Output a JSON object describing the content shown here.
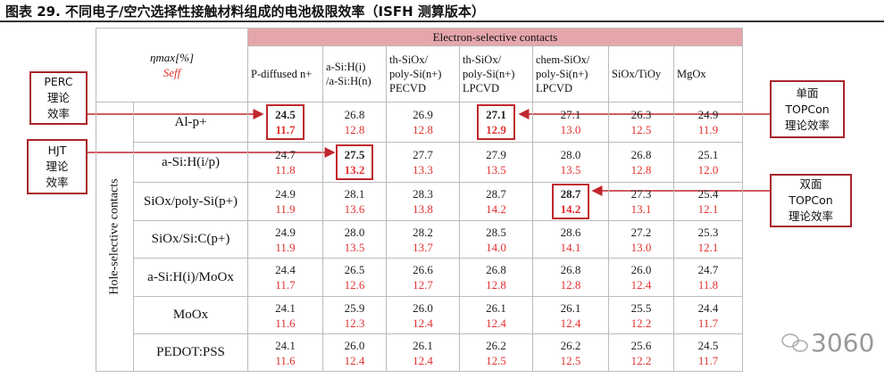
{
  "title": "图表 29. 不同电子/空穴选择性接触材料组成的电池极限效率（ISFH 测算版本）",
  "table": {
    "corner": {
      "eta": "ηmax[%]",
      "seff": "Seff"
    },
    "group_label": "Electron-selective contacts",
    "row_group_label": "Hole-selective contacts",
    "columns": [
      [
        "P-diffused n+"
      ],
      [
        "a-Si:H(i)",
        "/a-Si:H(n)"
      ],
      [
        "th-SiOx/",
        "poly-Si(n+)",
        "PECVD"
      ],
      [
        "th-SiOx/",
        "poly-Si(n+)",
        "LPCVD"
      ],
      [
        "chem-SiOx/",
        "poly-Si(n+)",
        "LPCVD"
      ],
      [
        "SiOx/TiOy"
      ],
      [
        "MgOx"
      ]
    ],
    "rows": [
      {
        "name": "Al-p+",
        "cells": [
          {
            "eta": "24.5",
            "seff": "11.7",
            "highlight": true
          },
          {
            "eta": "26.8",
            "seff": "12.8"
          },
          {
            "eta": "26.9",
            "seff": "12.8"
          },
          {
            "eta": "27.1",
            "seff": "12.9",
            "highlight": true
          },
          {
            "eta": "27.1",
            "seff": "13.0"
          },
          {
            "eta": "26.3",
            "seff": "12.5"
          },
          {
            "eta": "24.9",
            "seff": "11.9"
          }
        ]
      },
      {
        "name": "a-Si:H(i/p)",
        "cells": [
          {
            "eta": "24.7",
            "seff": "11.8"
          },
          {
            "eta": "27.5",
            "seff": "13.2",
            "highlight": true
          },
          {
            "eta": "27.7",
            "seff": "13.3"
          },
          {
            "eta": "27.9",
            "seff": "13.5"
          },
          {
            "eta": "28.0",
            "seff": "13.5"
          },
          {
            "eta": "26.8",
            "seff": "12.8"
          },
          {
            "eta": "25.1",
            "seff": "12.0"
          }
        ]
      },
      {
        "name": "SiOx/poly-Si(p+)",
        "cells": [
          {
            "eta": "24.9",
            "seff": "11.9"
          },
          {
            "eta": "28.1",
            "seff": "13.6"
          },
          {
            "eta": "28.3",
            "seff": "13.8"
          },
          {
            "eta": "28.7",
            "seff": "14.2"
          },
          {
            "eta": "28.7",
            "seff": "14.2",
            "highlight": true
          },
          {
            "eta": "27.3",
            "seff": "13.1"
          },
          {
            "eta": "25.4",
            "seff": "12.1"
          }
        ]
      },
      {
        "name": "SiOx/Si:C(p+)",
        "cells": [
          {
            "eta": "24.9",
            "seff": "11.9"
          },
          {
            "eta": "28.0",
            "seff": "13.5"
          },
          {
            "eta": "28.2",
            "seff": "13.7"
          },
          {
            "eta": "28.5",
            "seff": "14.0"
          },
          {
            "eta": "28.6",
            "seff": "14.1"
          },
          {
            "eta": "27.2",
            "seff": "13.0"
          },
          {
            "eta": "25.3",
            "seff": "12.1"
          }
        ]
      },
      {
        "name": "a-Si:H(i)/MoOx",
        "cells": [
          {
            "eta": "24.4",
            "seff": "11.7"
          },
          {
            "eta": "26.5",
            "seff": "12.6"
          },
          {
            "eta": "26.6",
            "seff": "12.7"
          },
          {
            "eta": "26.8",
            "seff": "12.8"
          },
          {
            "eta": "26.8",
            "seff": "12.8"
          },
          {
            "eta": "26.0",
            "seff": "12.4"
          },
          {
            "eta": "24.7",
            "seff": "11.8"
          }
        ]
      },
      {
        "name": "MoOx",
        "cells": [
          {
            "eta": "24.1",
            "seff": "11.6"
          },
          {
            "eta": "25.9",
            "seff": "12.3"
          },
          {
            "eta": "26.0",
            "seff": "12.4"
          },
          {
            "eta": "26.1",
            "seff": "12.4"
          },
          {
            "eta": "26.1",
            "seff": "12.4"
          },
          {
            "eta": "25.5",
            "seff": "12.2"
          },
          {
            "eta": "24.4",
            "seff": "11.7"
          }
        ]
      },
      {
        "name": "PEDOT:PSS",
        "cells": [
          {
            "eta": "24.1",
            "seff": "11.6"
          },
          {
            "eta": "26.0",
            "seff": "12.4"
          },
          {
            "eta": "26.1",
            "seff": "12.4"
          },
          {
            "eta": "26.2",
            "seff": "12.5"
          },
          {
            "eta": "26.2",
            "seff": "12.5"
          },
          {
            "eta": "25.6",
            "seff": "12.2"
          },
          {
            "eta": "24.5",
            "seff": "11.7"
          }
        ]
      }
    ]
  },
  "annotations": [
    {
      "lines": [
        "PERC",
        "理论",
        "效率"
      ]
    },
    {
      "lines": [
        "HJT",
        "理论",
        "效率"
      ]
    },
    {
      "lines": [
        "单面",
        "TOPCon",
        "理论效率"
      ]
    },
    {
      "lines": [
        "双面",
        "TOPCon",
        "理论效率"
      ]
    }
  ],
  "watermark": "3060"
}
